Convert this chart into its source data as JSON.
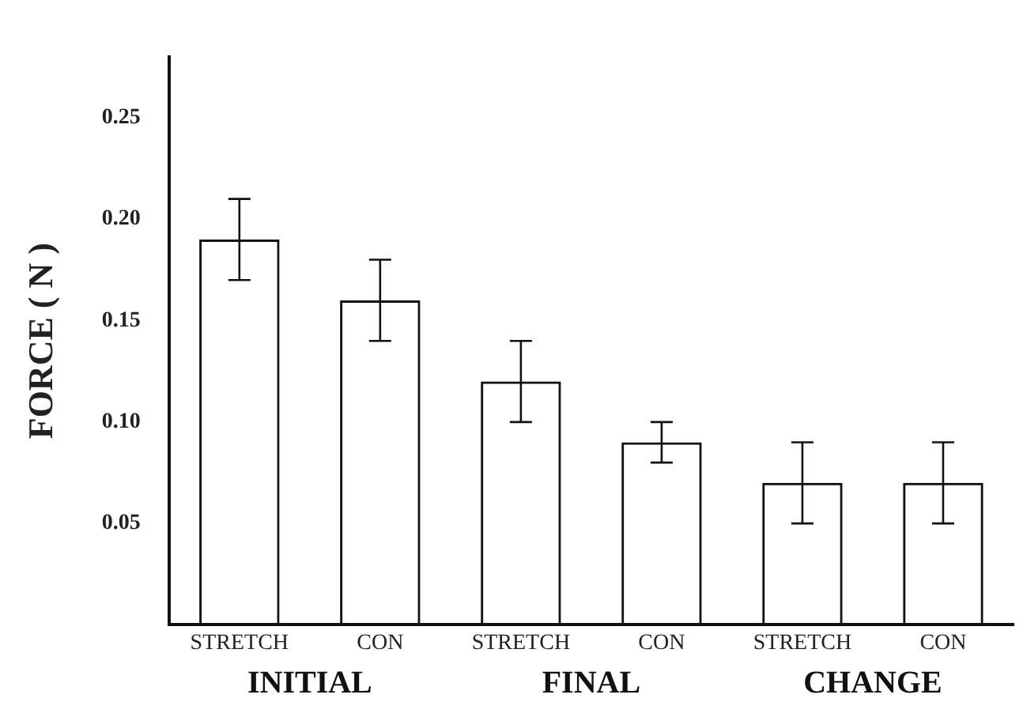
{
  "chart_data": {
    "type": "bar",
    "ylabel": "FORCE ( N )",
    "categories": [
      "STRETCH",
      "CON",
      "STRETCH",
      "CON",
      "STRETCH",
      "CON"
    ],
    "series": [
      {
        "color": "#111111",
        "values": [
          0.19,
          0.16,
          0.12,
          0.09,
          0.07,
          0.07
        ],
        "errors": [
          0.02,
          0.02,
          0.02,
          0.01,
          0.02,
          0.02
        ]
      }
    ],
    "annotations": [
      "INITIAL",
      "FINAL",
      "CHANGE"
    ],
    "ylim": [
      0,
      0.28
    ],
    "yticks": [
      0.05,
      {
        "value": 0.1,
        "label": "0.10"
      },
      0.15,
      {
        "value": 0.2,
        "label": "0.20"
      },
      0.25
    ],
    "grid": false,
    "legend": false
  }
}
